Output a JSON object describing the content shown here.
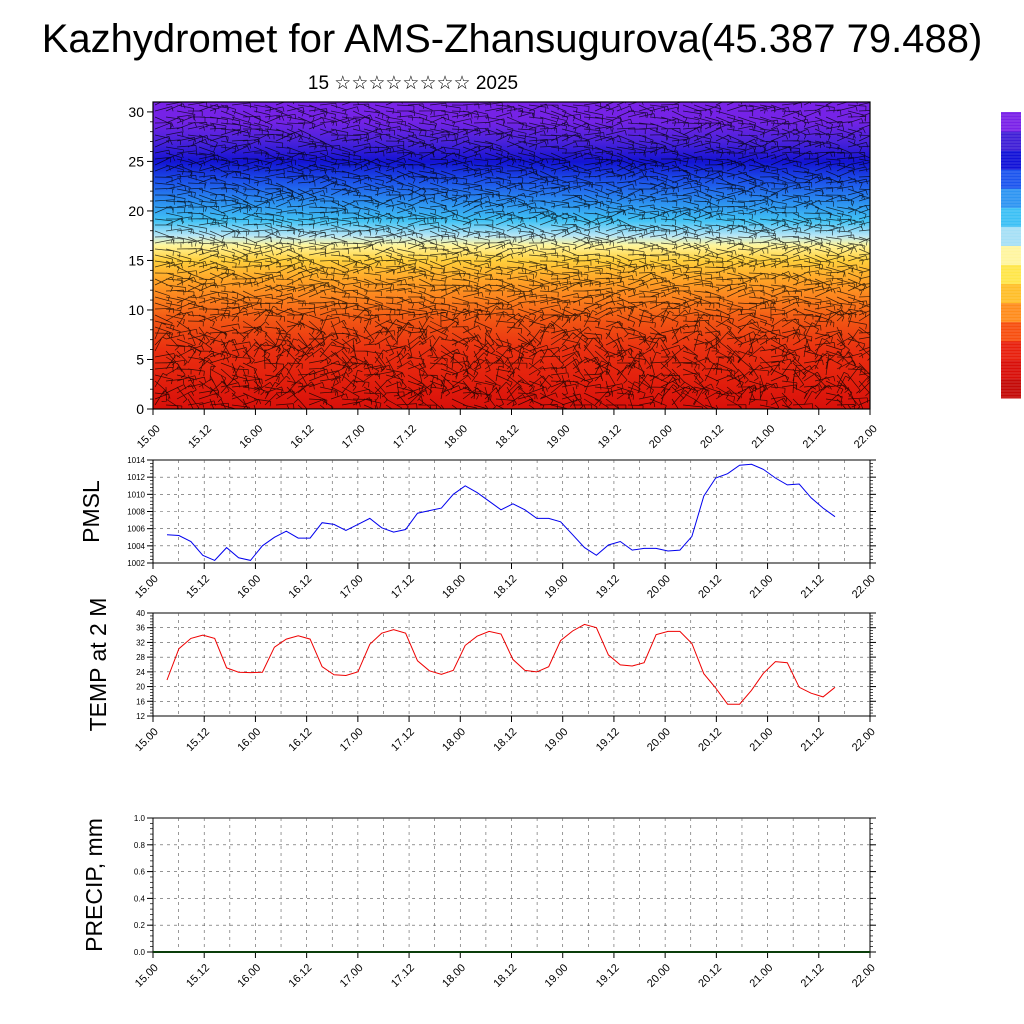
{
  "header": {
    "title": "Kazhydromet for AMS-Zhansugurova(45.387 79.488)",
    "subtitle": "15 ☆☆☆☆☆☆☆☆ 2025"
  },
  "chart_data": [
    {
      "type": "heatmap",
      "title": "",
      "xlabel": "",
      "ylabel": "",
      "x_tick_labels": [
        "15.00",
        "15.12",
        "16.00",
        "16.12",
        "17.00",
        "17.12",
        "18.00",
        "18.12",
        "19.00",
        "19.12",
        "20.00",
        "20.12",
        "21.00",
        "21.12",
        "22.00"
      ],
      "y_ticks": [
        0,
        5,
        10,
        15,
        20,
        25,
        30
      ],
      "ylim": [
        0,
        31
      ],
      "colorscale": [
        "#7a22e8",
        "#3f1fd6",
        "#1212d8",
        "#1c55ee",
        "#2f95f2",
        "#3dc0f5",
        "#a6e0f6",
        "#fff5a0",
        "#ffe64a",
        "#ffbe2a",
        "#ff8c1c",
        "#f74f10",
        "#e8200d",
        "#d90f0a",
        "#c40a08"
      ],
      "shading": [
        {
          "y": 0,
          "color": "#d9100a"
        },
        {
          "y": 3,
          "color": "#e3200d"
        },
        {
          "y": 6,
          "color": "#ea3010"
        },
        {
          "y": 9,
          "color": "#f25614"
        },
        {
          "y": 11,
          "color": "#fb7e1d"
        },
        {
          "y": 13,
          "color": "#ffa327"
        },
        {
          "y": 15,
          "color": "#ffcf3c"
        },
        {
          "y": 16.5,
          "color": "#fff59a"
        },
        {
          "y": 17.5,
          "color": "#b8e6f6"
        },
        {
          "y": 19,
          "color": "#42c3f5"
        },
        {
          "y": 21,
          "color": "#2a8cf0"
        },
        {
          "y": 23,
          "color": "#1c52ea"
        },
        {
          "y": 25,
          "color": "#1313d3"
        },
        {
          "y": 27,
          "color": "#4a22db"
        },
        {
          "y": 29,
          "color": "#7323e6"
        },
        {
          "y": 31,
          "color": "#7a22e8"
        }
      ],
      "grid": false,
      "wind_barbs": true
    },
    {
      "type": "line",
      "title": "",
      "xlabel": "",
      "ylabel": "PMSL",
      "x_tick_labels": [
        "15.00",
        "15.12",
        "16.00",
        "16.12",
        "17.00",
        "17.12",
        "18.00",
        "18.12",
        "19.00",
        "19.12",
        "20.00",
        "20.12",
        "21.00",
        "21.12",
        "22.00"
      ],
      "y_ticks": [
        1002,
        1004,
        1006,
        1008,
        1010,
        1012,
        1014
      ],
      "ylim": [
        1002,
        1014
      ],
      "grid": true,
      "series": [
        {
          "color": "#0000ee",
          "values": [
            1005.3,
            1005.2,
            1004.5,
            1002.9,
            1002.3,
            1003.8,
            1002.6,
            1002.3,
            1004.0,
            1005.0,
            1005.7,
            1004.9,
            1004.9,
            1006.7,
            1006.5,
            1005.8,
            1006.5,
            1007.2,
            1006.1,
            1005.6,
            1005.9,
            1007.8,
            1008.1,
            1008.4,
            1010.0,
            1011.0,
            1010.2,
            1009.2,
            1008.2,
            1008.9,
            1008.2,
            1007.2,
            1007.2,
            1006.8,
            1005.3,
            1003.8,
            1002.9,
            1004.1,
            1004.5,
            1003.5,
            1003.7,
            1003.7,
            1003.4,
            1003.5,
            1005.1,
            1009.8,
            1011.9,
            1012.4,
            1013.4,
            1013.5,
            1012.9,
            1011.9,
            1011.1,
            1011.2,
            1009.6,
            1008.4,
            1007.4
          ]
        }
      ]
    },
    {
      "type": "line",
      "title": "",
      "xlabel": "",
      "ylabel": "TEMP at 2 M",
      "x_tick_labels": [
        "15.00",
        "15.12",
        "16.00",
        "16.12",
        "17.00",
        "17.12",
        "18.00",
        "18.12",
        "19.00",
        "19.12",
        "20.00",
        "20.12",
        "21.00",
        "21.12",
        "22.00"
      ],
      "y_ticks": [
        12,
        16,
        20,
        24,
        28,
        32,
        36,
        40
      ],
      "ylim": [
        12,
        40
      ],
      "grid": true,
      "series": [
        {
          "color": "#ee0000",
          "values": [
            21.8,
            30.3,
            33.1,
            34.0,
            33.1,
            25.1,
            23.9,
            23.8,
            23.9,
            30.7,
            32.9,
            33.8,
            32.9,
            25.4,
            23.2,
            23.0,
            24.0,
            31.5,
            34.5,
            35.5,
            34.5,
            27.0,
            24.3,
            23.3,
            24.4,
            31.2,
            33.7,
            35.0,
            34.3,
            27.4,
            24.4,
            24.0,
            25.4,
            32.5,
            35.1,
            36.9,
            36.0,
            28.6,
            25.9,
            25.6,
            26.5,
            34.1,
            35.0,
            35.0,
            31.7,
            23.5,
            19.6,
            15.2,
            15.2,
            19.0,
            23.6,
            26.8,
            26.5,
            19.8,
            18.2,
            17.2,
            19.8
          ]
        }
      ]
    },
    {
      "type": "line",
      "title": "",
      "xlabel": "",
      "ylabel": "PRECIP, mm",
      "x_tick_labels": [
        "15.00",
        "15.12",
        "16.00",
        "16.12",
        "17.00",
        "17.12",
        "18.00",
        "18.12",
        "19.00",
        "19.12",
        "20.00",
        "20.12",
        "21.00",
        "21.12",
        "22.00"
      ],
      "y_ticks": [
        "0.0",
        "0.2",
        "0.4",
        "0.6",
        "0.8",
        "1.0"
      ],
      "ylim": [
        0,
        1
      ],
      "grid": true,
      "series": [
        {
          "color": "#0a3d0a",
          "values": [
            0,
            0,
            0,
            0,
            0,
            0,
            0,
            0,
            0,
            0,
            0,
            0,
            0,
            0,
            0,
            0,
            0,
            0,
            0,
            0,
            0,
            0,
            0,
            0,
            0,
            0,
            0,
            0,
            0,
            0,
            0,
            0,
            0,
            0,
            0,
            0,
            0,
            0,
            0,
            0,
            0,
            0,
            0,
            0,
            0,
            0,
            0,
            0,
            0,
            0,
            0,
            0,
            0,
            0,
            0,
            0,
            0
          ]
        }
      ]
    }
  ],
  "colorbar": {
    "colors": [
      "#c40a08",
      "#d90f0a",
      "#e8200d",
      "#f74f10",
      "#ff8c1c",
      "#ffbe2a",
      "#ffe64a",
      "#fff5a0",
      "#a6e0f6",
      "#3dc0f5",
      "#2f95f2",
      "#1c55ee",
      "#1212d8",
      "#3f1fd6",
      "#7a22e8"
    ]
  }
}
